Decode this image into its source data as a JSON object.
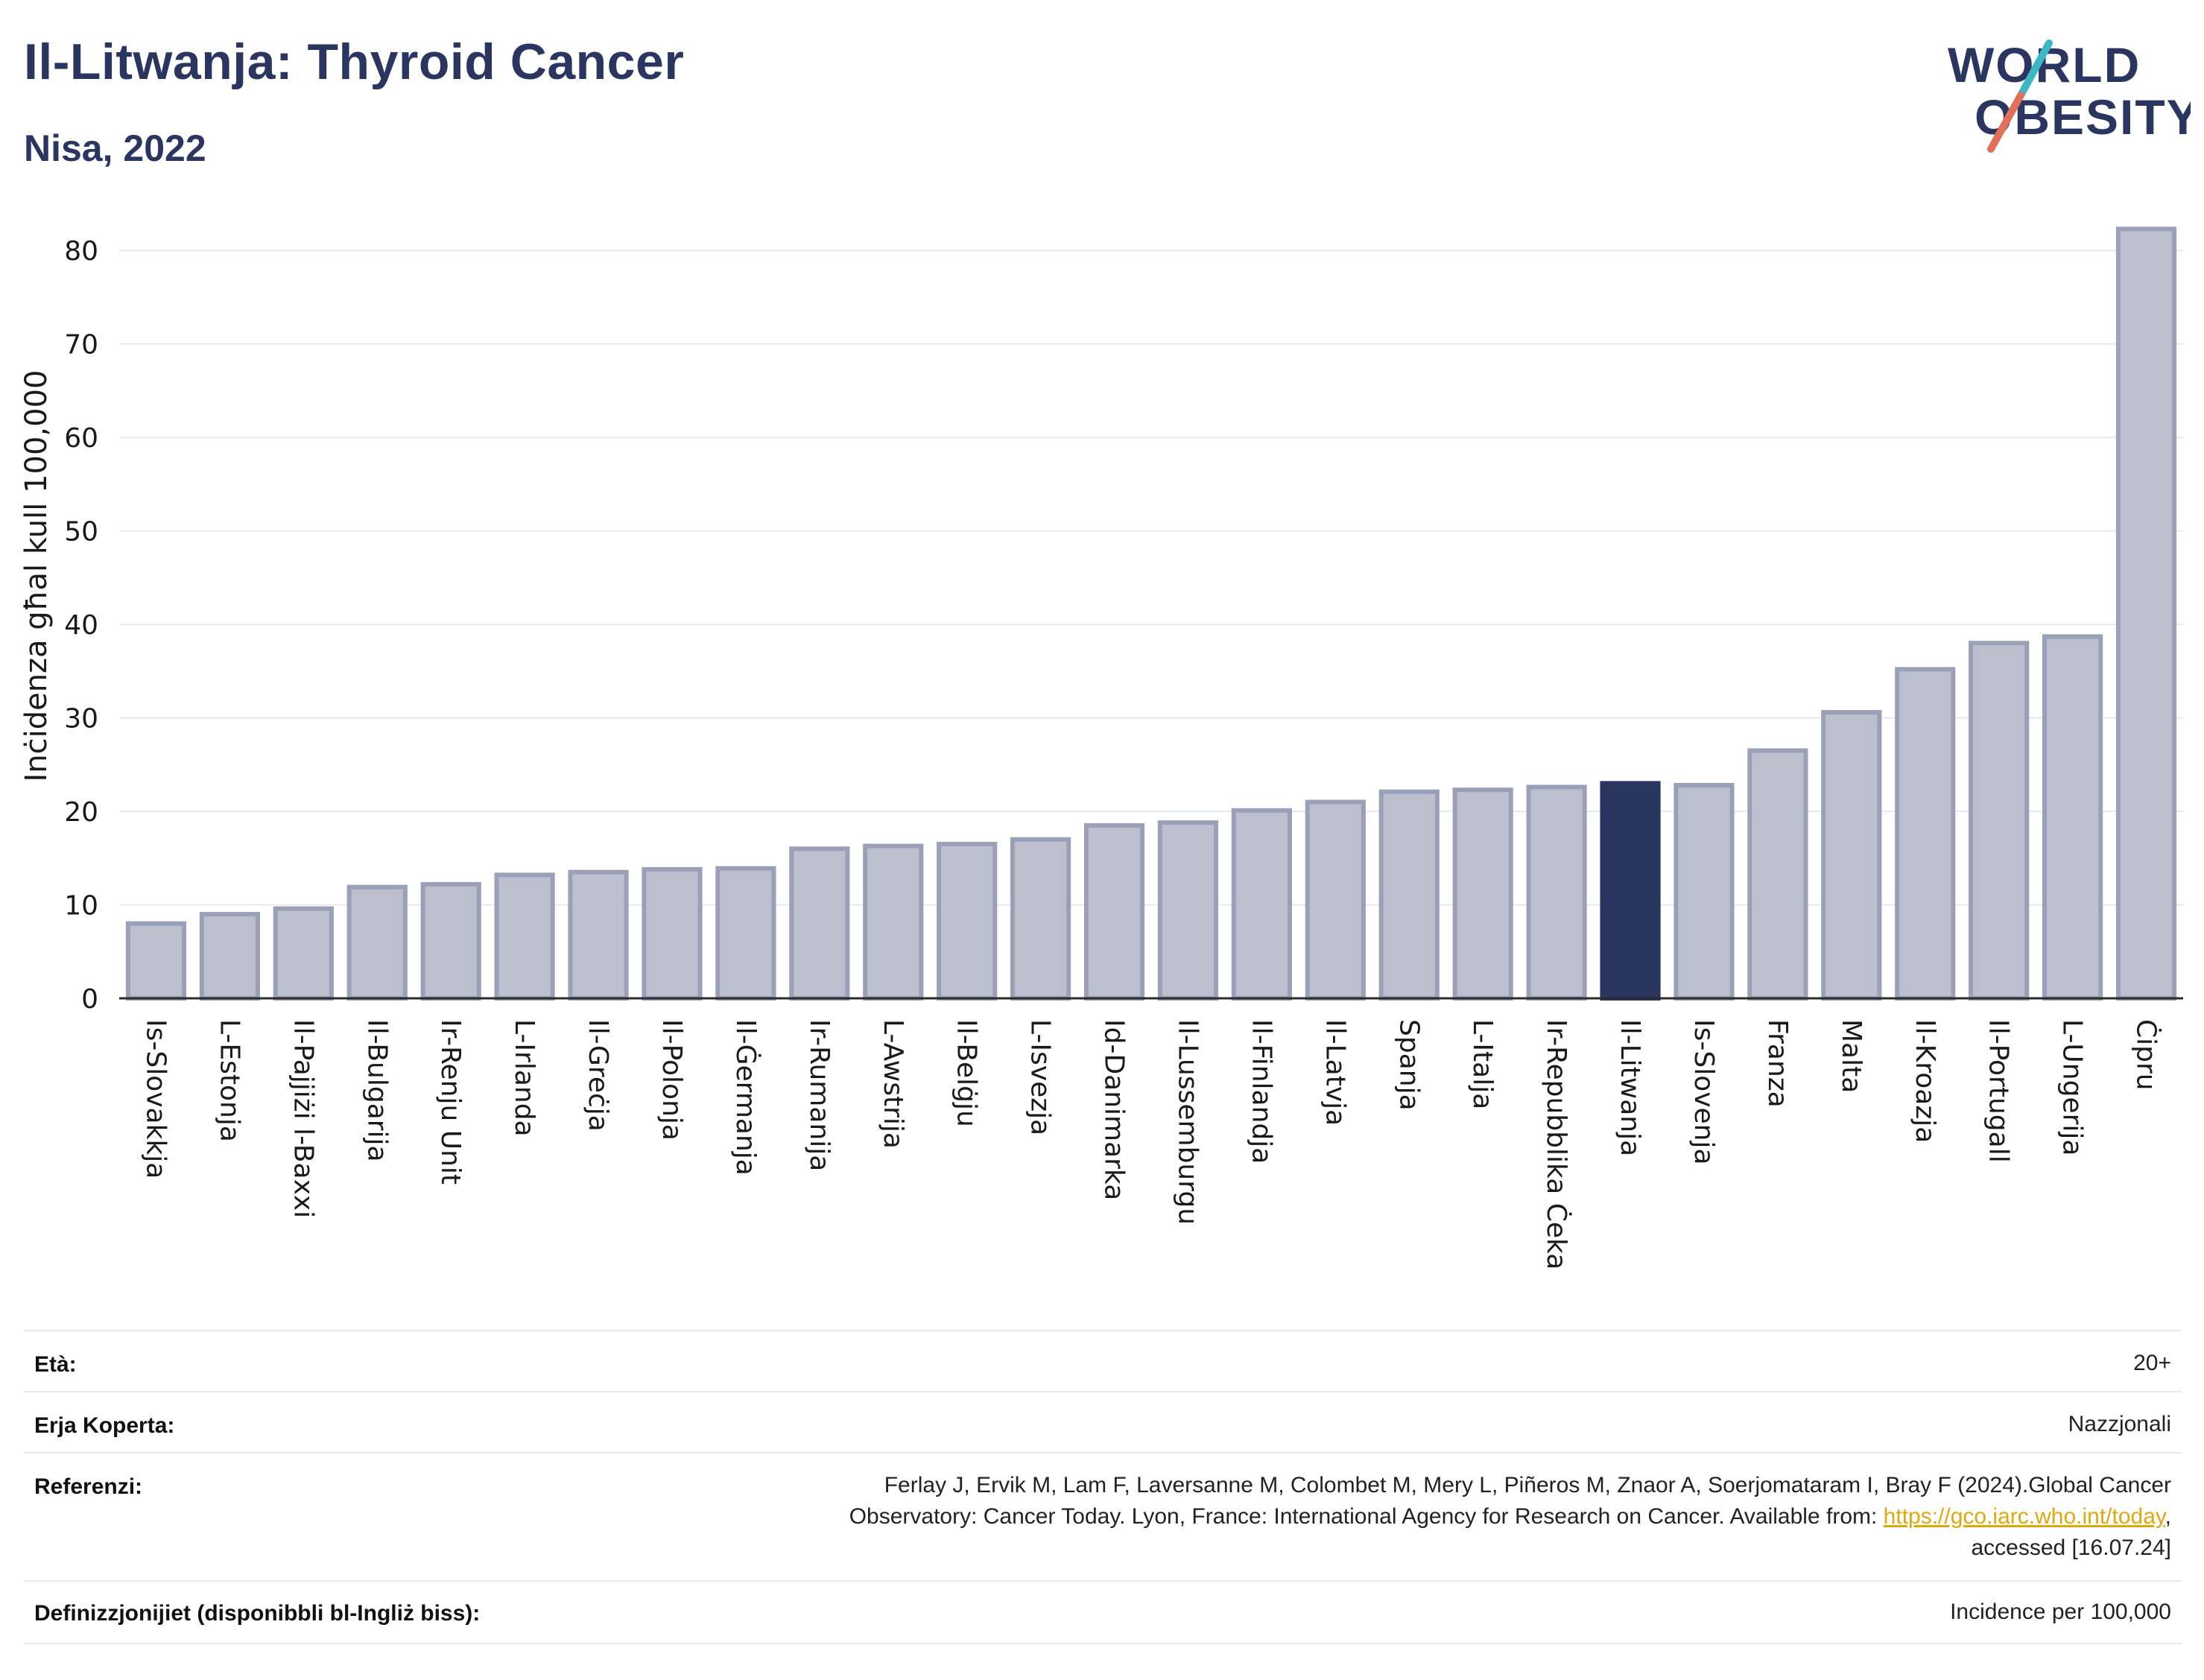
{
  "header": {
    "title": "Il-Litwanja: Thyroid Cancer",
    "subtitle": "Nisa, 2022"
  },
  "logo": {
    "line1": "WORLD",
    "line2": "OBESITY",
    "colors": {
      "text": "#2b3660",
      "slash_red": "#e0705a",
      "slash_teal": "#3bb8c3"
    }
  },
  "chart_data": {
    "type": "bar",
    "ylabel": "Inċidenza għal kull 100,000",
    "ylim": [
      0,
      84
    ],
    "yticks": [
      0,
      10,
      20,
      30,
      40,
      50,
      60,
      70,
      80
    ],
    "grid": true,
    "highlight": "Il-Litwanja",
    "colors": {
      "bar": "#bcbfcd",
      "bar_edge": "#9aa0b8",
      "highlight": "#2b3660",
      "grid": "#e6e9f0"
    },
    "categories": [
      "Is-Slovakkja",
      "L-Estonja",
      "Il-Pajjiżi l-Baxxi",
      "Il-Bulgarija",
      "Ir-Renju Unit",
      "L-Irlanda",
      "Il-Greċja",
      "Il-Polonja",
      "Il-Ġermanja",
      "Ir-Rumanija",
      "L-Awstrija",
      "Il-Belġju",
      "L-Isvezja",
      "Id-Danimarka",
      "Il-Lussemburgu",
      "Il-Finlandja",
      "Il-Latvja",
      "Spanja",
      "L-Italja",
      "Ir-Repubblika Ċeka",
      "Il-Litwanja",
      "Is-Slovenja",
      "Franza",
      "Malta",
      "Il-Kroazja",
      "Il-Portugall",
      "L-Ungerija",
      "Ċipru"
    ],
    "values": [
      8.0,
      9.0,
      9.6,
      11.9,
      12.2,
      13.2,
      13.5,
      13.8,
      13.9,
      16.0,
      16.3,
      16.5,
      17.0,
      18.5,
      18.8,
      20.1,
      21.0,
      22.1,
      22.3,
      22.6,
      23.0,
      22.8,
      26.5,
      30.6,
      35.2,
      38.0,
      38.7,
      82.3
    ]
  },
  "info": {
    "age_label": "Età:",
    "age_value": "20+",
    "area_label": "Erja Koperta:",
    "area_value": "Nazzjonali",
    "ref_label": "Referenzi:",
    "ref_line1": "Ferlay J, Ervik M, Lam F, Laversanne M, Colombet M, Mery L, Piñeros M, Znaor A, Soerjomataram I, Bray F (2024).Global Cancer",
    "ref_line2_pre": "Observatory: Cancer Today. Lyon, France: International Agency for Research on Cancer. Available from: ",
    "ref_link": "https://gco.iarc.who.int/today",
    "ref_line2_post": ",",
    "ref_line3": "accessed [16.07.24]",
    "def_label": "Definizzjonijiet (disponibbli bl-Ingliż biss):",
    "def_value": "Incidence per 100,000"
  }
}
